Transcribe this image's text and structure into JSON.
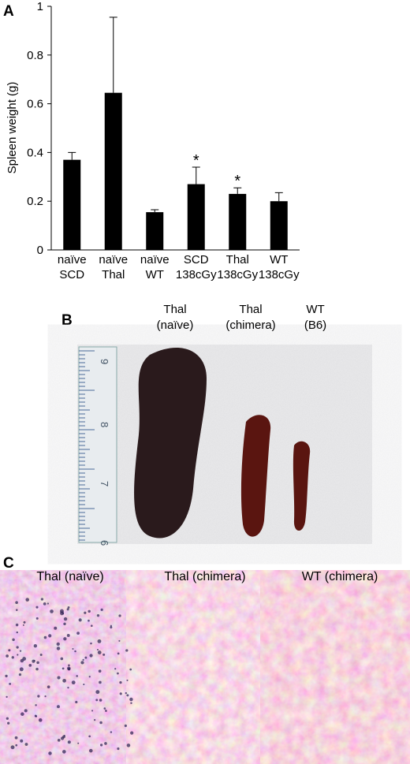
{
  "chart_data": {
    "type": "bar",
    "ylabel": "Spleen weight (g)",
    "categories": [
      "naïve SCD",
      "naïve Thal",
      "naïve WT",
      "SCD 138cGy",
      "Thal 138cGy",
      "WT 138cGy"
    ],
    "values": [
      0.37,
      0.645,
      0.155,
      0.27,
      0.23,
      0.2
    ],
    "errors": [
      0.03,
      0.31,
      0.01,
      0.07,
      0.025,
      0.035
    ],
    "color": "#000000",
    "ylim": [
      0,
      1
    ],
    "yticks": [
      0,
      0.2,
      0.4,
      0.6,
      0.8,
      1
    ],
    "annotations": [
      {
        "text": "*",
        "x": "SCD 138cGy"
      },
      {
        "text": "*",
        "x": "Thal 138cGy"
      }
    ]
  },
  "panels": {
    "a": "A",
    "b": "B",
    "c": "C"
  },
  "photo_labels": [
    "Thal (naïve)",
    "Thal (chimera)",
    "WT (B6)"
  ],
  "ruler_labels": [
    "6",
    "7",
    "8",
    "9"
  ],
  "histology_labels": [
    "Thal (naïve)",
    "Thal (chimera)",
    "WT (chimera)"
  ]
}
